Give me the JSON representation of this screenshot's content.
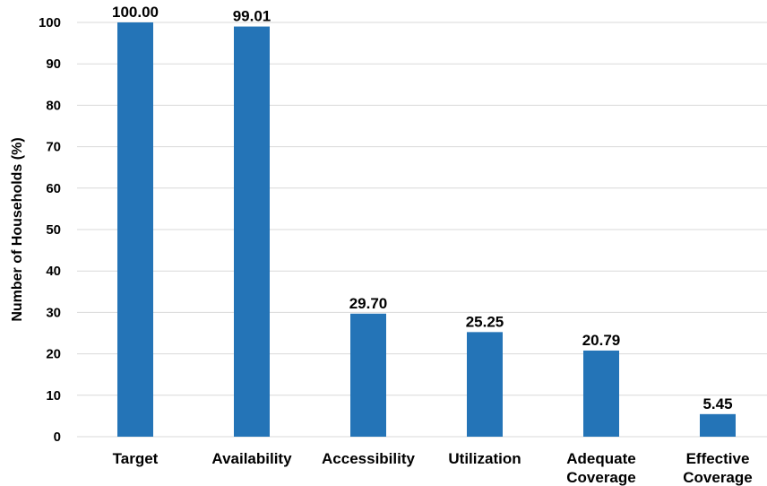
{
  "chart_data": {
    "type": "bar",
    "title": "",
    "xlabel": "",
    "ylabel": "Number of Households (%)",
    "ylim": [
      0,
      100
    ],
    "yticks": [
      0,
      10,
      20,
      30,
      40,
      50,
      60,
      70,
      80,
      90,
      100
    ],
    "categories": [
      [
        "Target"
      ],
      [
        "Availability"
      ],
      [
        "Accessibility"
      ],
      [
        "Utilization"
      ],
      [
        "Adequate",
        "Coverage"
      ],
      [
        "Effective",
        "Coverage"
      ]
    ],
    "values": [
      100.0,
      99.01,
      29.7,
      25.25,
      20.79,
      5.45
    ],
    "value_labels": [
      "100.00",
      "99.01",
      "29.70",
      "25.25",
      "20.79",
      "5.45"
    ],
    "bar_color": "#2474b7",
    "grid": true,
    "legend": "none"
  }
}
